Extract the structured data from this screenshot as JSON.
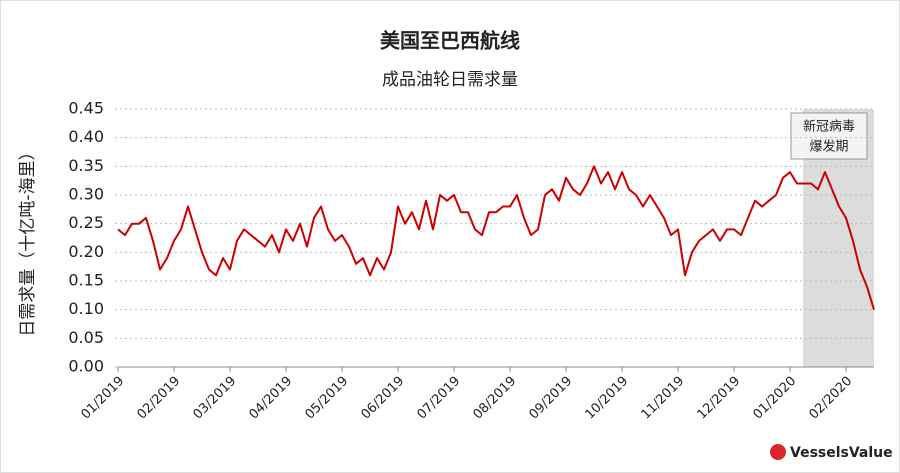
{
  "chart_data": {
    "type": "line",
    "title": "美国至巴西航线",
    "subtitle": "成品油轮日需求量",
    "y_label": "日需求量（十亿吨-海里）",
    "annotation": [
      "新冠病毒",
      "爆发期"
    ],
    "logo": "VesselsValue",
    "color": "#cc0000",
    "grid": true,
    "categories": [
      "01/2019",
      null,
      null,
      null,
      null,
      null,
      null,
      null,
      "02/2019",
      null,
      null,
      null,
      null,
      null,
      null,
      null,
      "03/2019",
      null,
      null,
      null,
      null,
      null,
      null,
      null,
      "04/2019",
      null,
      null,
      null,
      null,
      null,
      null,
      null,
      "05/2019",
      null,
      null,
      null,
      null,
      null,
      null,
      null,
      "06/2019",
      null,
      null,
      null,
      null,
      null,
      null,
      null,
      "07/2019",
      null,
      null,
      null,
      null,
      null,
      null,
      null,
      "08/2019",
      null,
      null,
      null,
      null,
      null,
      null,
      null,
      "09/2019",
      null,
      null,
      null,
      null,
      null,
      null,
      null,
      "10/2019",
      null,
      null,
      null,
      null,
      null,
      null,
      null,
      "11/2019",
      null,
      null,
      null,
      null,
      null,
      null,
      null,
      "12/2019",
      null,
      null,
      null,
      null,
      null,
      null,
      null,
      "01/2020",
      null,
      null,
      null,
      null,
      null,
      null,
      null,
      "02/2020",
      null,
      null,
      null,
      null
    ],
    "values": [
      0.24,
      0.23,
      0.25,
      0.25,
      0.26,
      0.22,
      0.17,
      0.19,
      0.22,
      0.24,
      0.28,
      0.24,
      0.2,
      0.17,
      0.16,
      0.19,
      0.17,
      0.22,
      0.24,
      0.23,
      0.22,
      0.21,
      0.23,
      0.2,
      0.24,
      0.22,
      0.25,
      0.21,
      0.26,
      0.28,
      0.24,
      0.22,
      0.23,
      0.21,
      0.18,
      0.19,
      0.16,
      0.19,
      0.17,
      0.2,
      0.28,
      0.25,
      0.27,
      0.24,
      0.29,
      0.24,
      0.3,
      0.29,
      0.3,
      0.27,
      0.27,
      0.24,
      0.23,
      0.27,
      0.27,
      0.28,
      0.28,
      0.3,
      0.26,
      0.23,
      0.24,
      0.3,
      0.31,
      0.29,
      0.33,
      0.31,
      0.3,
      0.32,
      0.35,
      0.32,
      0.34,
      0.31,
      0.34,
      0.31,
      0.3,
      0.28,
      0.3,
      0.28,
      0.26,
      0.23,
      0.24,
      0.16,
      0.2,
      0.22,
      0.23,
      0.24,
      0.22,
      0.24,
      0.24,
      0.23,
      0.26,
      0.29,
      0.28,
      0.29,
      0.3,
      0.33,
      0.34,
      0.32,
      0.32,
      0.32,
      0.31,
      0.34,
      0.31,
      0.28,
      0.26,
      0.22,
      0.17,
      0.14,
      0.1
    ],
    "ylim": [
      0,
      0.45
    ],
    "yticks": [
      {
        "value": 0,
        "label": "0.00"
      },
      0.05,
      {
        "value": 0.1,
        "label": "0.10"
      },
      0.15,
      {
        "value": 0.2,
        "label": "0.20"
      },
      0.25,
      {
        "value": 0.3,
        "label": "0.30"
      },
      0.35,
      {
        "value": 0.4,
        "label": "0.40"
      },
      0.45
    ]
  }
}
